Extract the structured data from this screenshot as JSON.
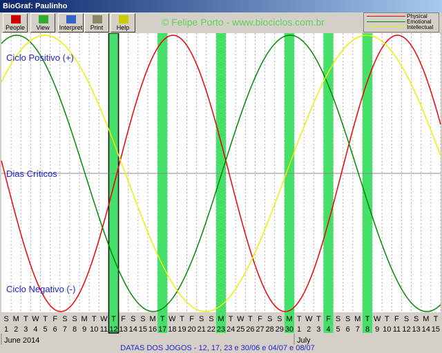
{
  "window_title": "BioGraf: Paulinho",
  "toolbar": [
    "People",
    "View",
    "Interpret",
    "Print",
    "Help"
  ],
  "copyright": "© Felipe Porto - www.biociclos.com.br",
  "legend": [
    "Physical",
    "Emotional",
    "Intellectual"
  ],
  "zones": {
    "positive": "Ciclo Positivo (+)",
    "critical": "Dias Críticos",
    "negative": "Ciclo Negativo (-)"
  },
  "days": [
    {
      "weekday": "S",
      "day": 1
    },
    {
      "weekday": "M",
      "day": 2
    },
    {
      "weekday": "T",
      "day": 3
    },
    {
      "weekday": "W",
      "day": 4
    },
    {
      "weekday": "T",
      "day": 5
    },
    {
      "weekday": "F",
      "day": 6
    },
    {
      "weekday": "S",
      "day": 7
    },
    {
      "weekday": "S",
      "day": 8
    },
    {
      "weekday": "M",
      "day": 9
    },
    {
      "weekday": "T",
      "day": 10
    },
    {
      "weekday": "W",
      "day": 11
    },
    {
      "weekday": "T",
      "day": 12,
      "match": true
    },
    {
      "weekday": "F",
      "day": 13
    },
    {
      "weekday": "S",
      "day": 14
    },
    {
      "weekday": "S",
      "day": 15
    },
    {
      "weekday": "M",
      "day": 16
    },
    {
      "weekday": "T",
      "day": 17,
      "match": true
    },
    {
      "weekday": "W",
      "day": 18
    },
    {
      "weekday": "T",
      "day": 19
    },
    {
      "weekday": "F",
      "day": 20
    },
    {
      "weekday": "S",
      "day": 21
    },
    {
      "weekday": "S",
      "day": 22
    },
    {
      "weekday": "M",
      "day": 23,
      "match": true
    },
    {
      "weekday": "T",
      "day": 24
    },
    {
      "weekday": "W",
      "day": 25
    },
    {
      "weekday": "T",
      "day": 26
    },
    {
      "weekday": "F",
      "day": 27
    },
    {
      "weekday": "S",
      "day": 28
    },
    {
      "weekday": "S",
      "day": 29
    },
    {
      "weekday": "M",
      "day": 30,
      "match": true
    },
    {
      "weekday": "T",
      "day": 1
    },
    {
      "weekday": "W",
      "day": 2
    },
    {
      "weekday": "T",
      "day": 3
    },
    {
      "weekday": "F",
      "day": 4,
      "match": true
    },
    {
      "weekday": "S",
      "day": 5
    },
    {
      "weekday": "S",
      "day": 6
    },
    {
      "weekday": "M",
      "day": 7
    },
    {
      "weekday": "T",
      "day": 8,
      "match": true
    },
    {
      "weekday": "W",
      "day": 9
    },
    {
      "weekday": "T",
      "day": 10
    },
    {
      "weekday": "F",
      "day": 11
    },
    {
      "weekday": "S",
      "day": 12
    },
    {
      "weekday": "S",
      "day": 13
    },
    {
      "weekday": "M",
      "day": 14
    },
    {
      "weekday": "T",
      "day": 15
    }
  ],
  "months": [
    {
      "label": "June 2014",
      "start": 0
    },
    {
      "label": "July",
      "start": 30
    }
  ],
  "status": "DATAS DOS JOGOS - 12, 17, 23 e 30/06 e 04/07 e 08/07"
}
